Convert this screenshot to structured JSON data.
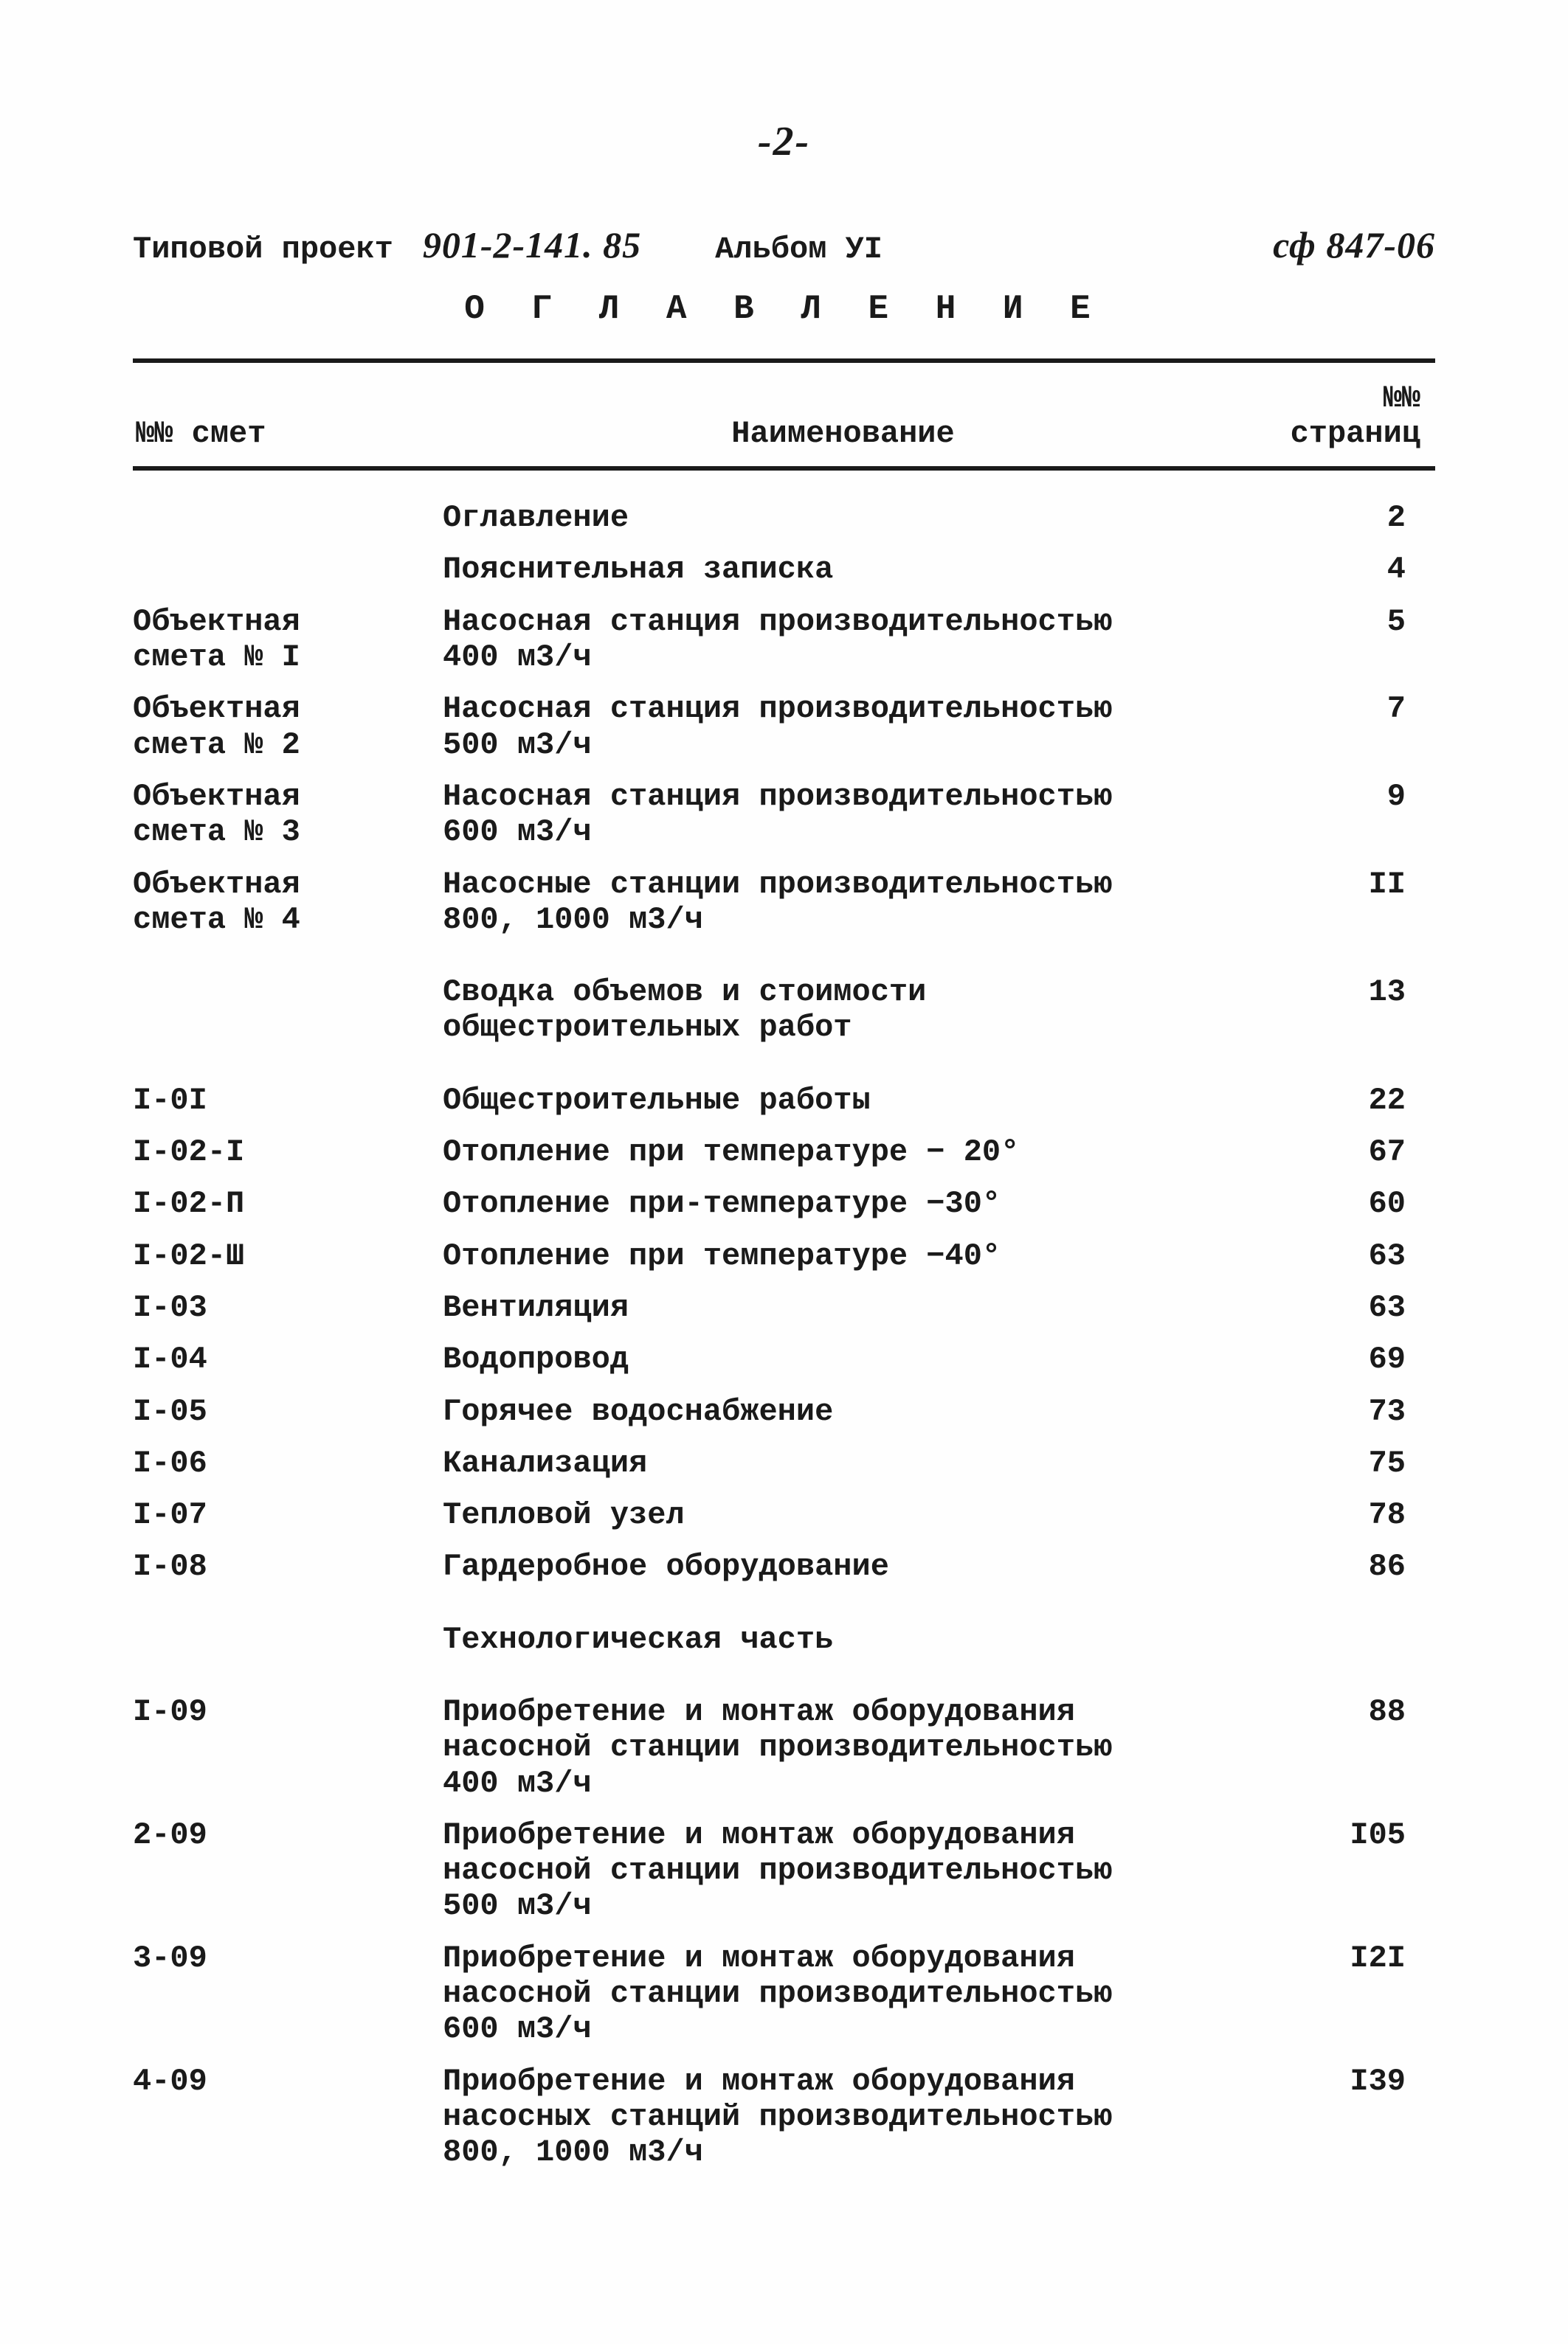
{
  "page_marker": "-2-",
  "header": {
    "label": "Типовой проект",
    "project_no": "901-2-141. 85",
    "album": "Альбом УI",
    "ref": "сф 847-06"
  },
  "title": "О Г Л А В Л Е Н И Е",
  "columns": {
    "c1": "№№\nсмет",
    "c2": "Наименование",
    "c3": "№№\nстраниц"
  },
  "rows": [
    {
      "c1": "",
      "c2": "Оглавление",
      "c3": "2"
    },
    {
      "c1": "",
      "c2": "Пояснительная записка",
      "c3": "4"
    },
    {
      "c1": "Объектная\nсмета № I",
      "c2": "Насосная станция производительностью\n400 м3/ч",
      "c3": "5"
    },
    {
      "c1": "Объектная\nсмета № 2",
      "c2": "Насосная станция производительностью\n500 м3/ч",
      "c3": "7"
    },
    {
      "c1": "Объектная\nсмета № 3",
      "c2": "Насосная станция производительностью\n600 м3/ч",
      "c3": "9"
    },
    {
      "c1": "Объектная\nсмета № 4",
      "c2": "Насосные станции производительностью\n800, 1000 м3/ч",
      "c3": "II"
    },
    {
      "gap": true
    },
    {
      "c1": "",
      "c2": "Сводка объемов и стоимости\nобщестроительных работ",
      "c3": "13"
    },
    {
      "gap": true
    },
    {
      "c1": "I-0I",
      "c2": "Общестроительные работы",
      "c3": "22"
    },
    {
      "c1": "I-02-I",
      "c2": "Отопление при температуре − 20°",
      "c3": "67"
    },
    {
      "c1": "I-02-П",
      "c2": "Отопление при-температуре −30°",
      "c3": "60"
    },
    {
      "c1": "I-02-Ш",
      "c2": "Отопление при температуре −40°",
      "c3": "63"
    },
    {
      "c1": "I-03",
      "c2": "Вентиляция",
      "c3": "63"
    },
    {
      "c1": "I-04",
      "c2": "Водопровод",
      "c3": "69"
    },
    {
      "c1": "I-05",
      "c2": "Горячее водоснабжение",
      "c3": "73"
    },
    {
      "c1": "I-06",
      "c2": "Канализация",
      "c3": "75"
    },
    {
      "c1": "I-07",
      "c2": "Тепловой узел",
      "c3": "78"
    },
    {
      "c1": "I-08",
      "c2": "Гардеробное оборудование",
      "c3": "86"
    },
    {
      "gap": true
    },
    {
      "c1": "",
      "c2": "Технологическая часть",
      "c3": ""
    },
    {
      "gap": true
    },
    {
      "c1": "I-09",
      "c2": "Приобретение и монтаж оборудования\nнасосной станции производительностью\n400 м3/ч",
      "c3": "88"
    },
    {
      "c1": "2-09",
      "c2": "Приобретение и монтаж оборудования\nнасосной станции производительностью\n500 м3/ч",
      "c3": "I05"
    },
    {
      "c1": "3-09",
      "c2": "Приобретение и монтаж оборудования\nнасосной станции производительностью\n600 м3/ч",
      "c3": "I2I"
    },
    {
      "c1": "4-09",
      "c2": "Приобретение и монтаж оборудования\nнасосных станций производительностью\n800, 1000 м3/ч",
      "c3": "I39"
    }
  ]
}
